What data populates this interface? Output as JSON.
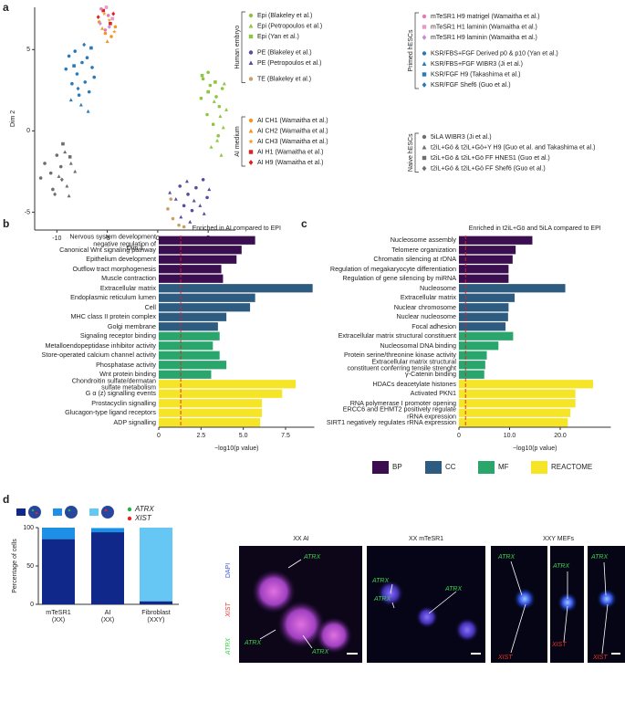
{
  "panel_labels": [
    "a",
    "b",
    "c",
    "d"
  ],
  "chart_data": [
    {
      "type": "scatter",
      "xlabel": "Dim 1",
      "ylabel": "Dim 2",
      "xlim": [
        -12.2,
        7.7
      ],
      "ylim": [
        -6.1,
        7.6
      ],
      "xticks": [
        -10,
        -5,
        0,
        5
      ],
      "yticks": [
        -5,
        0,
        5
      ],
      "groups": [
        {
          "label": "Human embryo",
          "series": [
            {
              "name": "Epi (Blakeley et al.)",
              "color": "#8dc63f",
              "marker": "circle",
              "x": [
                4.5,
                5.2,
                5.8,
                6.1,
                4.9,
                5.5,
                6.4,
                5.0,
                4.3,
                6.0
              ],
              "y": [
                3.2,
                2.8,
                2.1,
                1.5,
                1.0,
                0.4,
                2.6,
                3.6,
                2.0,
                -0.3
              ]
            },
            {
              "name": "Epi (Petropoulos et al.)",
              "color": "#8dc63f",
              "marker": "triangle",
              "x": [
                5.6,
                6.2,
                6.5,
                5.9,
                6.8,
                5.3,
                6.3,
                6.6
              ],
              "y": [
                1.8,
                0.9,
                0.2,
                -0.6,
                1.3,
                -1.0,
                -1.5,
                2.9
              ]
            },
            {
              "name": "Epi (Yan et al.)",
              "color": "#8dc63f",
              "marker": "square",
              "x": [
                4.4,
                5.0,
                5.7
              ],
              "y": [
                3.4,
                2.4,
                3.0
              ]
            },
            {
              "name": "PE (Blakeley et al.)",
              "color": "#5b4aa0",
              "marker": "circle",
              "x": [
                2.2,
                3.0,
                3.8,
                4.5,
                2.6,
                3.4,
                4.9
              ],
              "y": [
                -3.4,
                -3.9,
                -3.5,
                -3.0,
                -4.6,
                -4.9,
                -4.1
              ]
            },
            {
              "name": "PE (Petropoulos et al.)",
              "color": "#5b4aa0",
              "marker": "triangle",
              "x": [
                1.8,
                2.9,
                3.6,
                4.2,
                5.1,
                2.3,
                4.6,
                3.2,
                1.2
              ],
              "y": [
                -4.2,
                -3.1,
                -4.3,
                -4.6,
                -3.6,
                -5.3,
                -5.1,
                -5.6,
                -3.8
              ]
            },
            {
              "name": "TE (Blakeley et al.)",
              "color": "#c9a063",
              "marker": "circle",
              "x": [
                1.0,
                1.5,
                2.1,
                1.3,
                2.6
              ],
              "y": [
                -4.8,
                -5.4,
                -5.8,
                -4.2,
                -5.9
              ]
            }
          ]
        },
        {
          "label": "AI medium",
          "series": [
            {
              "name": "AI CH1 (Wamaitha et al.)",
              "color": "#f7941d",
              "marker": "circle",
              "x": [
                -5.2,
                -4.6,
                -5.8,
                -4.2
              ],
              "y": [
                6.0,
                5.8,
                6.7,
                6.4
              ]
            },
            {
              "name": "AI CH2 (Wamaitha et al.)",
              "color": "#f7941d",
              "marker": "triangle",
              "x": [
                -5.0,
                -5.5,
                -4.5
              ],
              "y": [
                5.5,
                6.3,
                6.9
              ]
            },
            {
              "name": "AI CH3 (Wamaitha et al.)",
              "color": "#f7941d",
              "marker": "star",
              "x": [
                -4.8,
                -5.3,
                -4.3
              ],
              "y": [
                6.8,
                7.2,
                6.1
              ]
            },
            {
              "name": "AI H1 (Wamaitha et al.)",
              "color": "#e02020",
              "marker": "square",
              "x": [
                -5.4,
                -4.7
              ],
              "y": [
                7.4,
                6.6
              ]
            },
            {
              "name": "AI H9 (Wamaitha et al.)",
              "color": "#e02020",
              "marker": "diamond",
              "x": [
                -5.9,
                -4.4
              ],
              "y": [
                7.0,
                7.2
              ]
            }
          ]
        },
        {
          "label": "Primed hESCs",
          "series": [
            {
              "name": "mTeSR1 H9 matrigel (Wamaitha et al.)",
              "color": "#e37bb4",
              "marker": "circle",
              "x": [
                -5.6,
                -4.9,
                -5.2
              ],
              "y": [
                7.5,
                7.1,
                6.2
              ]
            },
            {
              "name": "mTeSR1 H1 laminin (Wamaitha et al.)",
              "color": "#e89ac4",
              "marker": "square",
              "x": [
                -5.1,
                -4.5
              ],
              "y": [
                7.6,
                6.9
              ]
            },
            {
              "name": "mTeSR1 H9 laminin (Wamaitha et al.)",
              "color": "#c98ed6",
              "marker": "diamond",
              "x": [
                -5.7,
                -4.8
              ],
              "y": [
                6.6,
                6.4
              ]
            },
            {
              "name": "KSR/FBS+FGF Derived p0 & p10 (Yan et al.)",
              "color": "#2a7ab8",
              "marker": "circle",
              "x": [
                -8.8,
                -8.2,
                -7.5,
                -7.0,
                -6.5,
                -8.0,
                -7.2,
                -6.8,
                -9.1,
                -7.8,
                -6.3,
                -8.5
              ],
              "y": [
                4.6,
                4.9,
                4.2,
                4.5,
                3.9,
                3.5,
                3.0,
                2.4,
                3.8,
                2.2,
                3.3,
                2.9
              ]
            },
            {
              "name": "KSR/FBS+FGF WIBR3 (Ji et al.)",
              "color": "#2a7ab8",
              "marker": "triangle",
              "x": [
                -7.6,
                -8.6,
                -6.9
              ],
              "y": [
                1.6,
                1.9,
                1.2
              ]
            },
            {
              "name": "KSR/FGF H9 (Takashima et al.)",
              "color": "#2a7ab8",
              "marker": "square",
              "x": [
                -6.6,
                -8.3
              ],
              "y": [
                5.1,
                4.0
              ]
            },
            {
              "name": "KSR/FGF Shef6 (Guo et al.)",
              "color": "#2a7ab8",
              "marker": "diamond",
              "x": [
                -7.3,
                -7.9
              ],
              "y": [
                5.3,
                2.6
              ]
            }
          ]
        },
        {
          "label": "Naive hESCs",
          "series": [
            {
              "name": "5iLA WIBR3 (Ji et al.)",
              "color": "#6d6e70",
              "marker": "circle",
              "x": [
                -11.2,
                -10.6,
                -10.0,
                -11.6,
                -9.6,
                -10.4
              ],
              "y": [
                -2.0,
                -2.6,
                -1.5,
                -2.9,
                -2.2,
                -3.6
              ]
            },
            {
              "name": "t2iL+Gö & t2iL+Gö+Y H9 (Guo et al. and Takashima et al.)",
              "color": "#6d6e70",
              "marker": "triangle",
              "x": [
                -9.2,
                -8.6,
                -9.8,
                -8.2,
                -9.0,
                -8.8
              ],
              "y": [
                -1.3,
                -2.0,
                -2.8,
                -2.5,
                -3.4,
                -4.0
              ]
            },
            {
              "name": "t2iL+Gö & t2iL+Gö FF HNES1 (Guo et al.)",
              "color": "#6d6e70",
              "marker": "square",
              "x": [
                -9.4,
                -8.7
              ],
              "y": [
                -0.8,
                -1.6
              ]
            },
            {
              "name": "t2iL+Gö & t2iL+Gö FF Shef6 (Guo et al.)",
              "color": "#6d6e70",
              "marker": "diamond",
              "x": [
                -10.2,
                -9.5
              ],
              "y": [
                -3.9,
                -3.0
              ]
            }
          ]
        }
      ]
    },
    {
      "type": "hbar",
      "title": "Enriched in AI compared to EPI",
      "xlabel": "−log10(p value)",
      "xlim": [
        0,
        9.2
      ],
      "xticks": [
        0,
        2.5,
        {
          "value": 5,
          "label": "5.0"
        },
        7.5
      ],
      "threshold": 1.3,
      "threshold_color": "#e0202a",
      "categories": [
        "Nervous system development\nnegative regulation of",
        "Canonical Wnt signaling pathway",
        "Epithelium development",
        "Outflow tract morphogenesis",
        "Muscle contraction",
        "Extracellular matrix",
        "Endoplasmic reticulum lumen",
        "Cell",
        "MHC class II protein complex",
        "Golgi membrane",
        "Signaling receptor binding",
        "Metalloendopeptidase inhibitor activity",
        "Store-operated calcium channel activity",
        "Phosphatase activity",
        "Wnt protein binding",
        "Chondroitin sulfate/dermatan\nsulfate metabolism",
        "G α (z) signalling events",
        "Prostacyclin signalling",
        "Glucagon-type ligand receptors",
        "ADP signalling"
      ],
      "values": [
        5.7,
        4.9,
        4.6,
        3.7,
        3.8,
        9.1,
        5.7,
        5.4,
        4.0,
        3.5,
        3.6,
        3.2,
        3.6,
        4.0,
        3.1,
        8.1,
        7.3,
        6.1,
        6.1,
        6.0
      ],
      "colors": [
        "#3b0f4f",
        "#3b0f4f",
        "#3b0f4f",
        "#3b0f4f",
        "#3b0f4f",
        "#2e5b80",
        "#2e5b80",
        "#2e5b80",
        "#2e5b80",
        "#2e5b80",
        "#2aa66c",
        "#2aa66c",
        "#2aa66c",
        "#2aa66c",
        "#2aa66c",
        "#f6e526",
        "#f6e526",
        "#f6e526",
        "#f6e526",
        "#f6e526"
      ]
    },
    {
      "type": "hbar",
      "title": "Enriched in t2iL+Gö and 5iLA compared to EPI",
      "xlabel": "−log10(p value)",
      "xlim": [
        0,
        30
      ],
      "xticks": [
        0,
        {
          "value": 10,
          "label": "10.0"
        },
        {
          "value": 20,
          "label": "20.0"
        }
      ],
      "threshold": 1.3,
      "threshold_color": "#e0202a",
      "categories": [
        "Nucleosome assembly",
        "Telomere organization",
        "Chromatin silencing at rDNA",
        "Regulation of megakaryocyte differentiation",
        "Regulation of gene silencing by miRNA",
        "Nucleosome",
        "Extracellular matrix",
        "Nuclear chromosome",
        "Nuclear nucleosome",
        "Focal adhesion",
        "Extracellular matrix structural constituent",
        "Nucleosomal DNA binding",
        "Protein serine/threonine kinase activity",
        "Extracellular matrix structural\nconstituent conferring tensile strenght",
        "γ-Catenin binding",
        "HDACs deacetylate histones",
        "Activated PKN1",
        "RNA polymerase I promoter opening",
        "ERCC6 and EHMT2 positively regulate\nrRNA expression",
        "SIRT1 negatively regulates rRNA expression"
      ],
      "values": [
        14.5,
        11.2,
        10.6,
        9.8,
        9.8,
        21,
        11,
        9.8,
        9.7,
        9.2,
        10.7,
        7.8,
        5.5,
        5.2,
        5.0,
        26.5,
        23,
        23,
        22,
        21.5
      ],
      "colors": [
        "#3b0f4f",
        "#3b0f4f",
        "#3b0f4f",
        "#3b0f4f",
        "#3b0f4f",
        "#2e5b80",
        "#2e5b80",
        "#2e5b80",
        "#2e5b80",
        "#2e5b80",
        "#2aa66c",
        "#2aa66c",
        "#2aa66c",
        "#2aa66c",
        "#2aa66c",
        "#f6e526",
        "#f6e526",
        "#f6e526",
        "#f6e526",
        "#f6e526"
      ],
      "legend": [
        {
          "name": "BP",
          "color": "#3b0f4f"
        },
        {
          "name": "CC",
          "color": "#2e5b80"
        },
        {
          "name": "MF",
          "color": "#2aa66c"
        },
        {
          "name": "REACTOME",
          "color": "#f6e526"
        }
      ]
    },
    {
      "type": "stacked_bar",
      "ylabel": "Percentage of cells",
      "ylim": [
        0,
        100
      ],
      "yticks": [
        0,
        50,
        100
      ],
      "categories": [
        "mTeSR1\n(XX)",
        "AI\n(XX)",
        "Fibroblast\n(XXY)"
      ],
      "series": [
        {
          "color": "#10288a",
          "values": [
            85,
            94,
            4
          ]
        },
        {
          "color": "#1e8fe6",
          "values": [
            15,
            5,
            0
          ]
        },
        {
          "color": "#66c7f4",
          "values": [
            0,
            1,
            96
          ]
        }
      ],
      "markers": [
        {
          "name": "ATRX",
          "color": "#1db34a"
        },
        {
          "name": "XIST",
          "color": "#e3262b"
        }
      ]
    }
  ],
  "micrographs": {
    "titles": [
      "XX AI",
      "XX mTeSR1",
      "XXY MEFs"
    ],
    "channels": [
      "DAPI",
      "XIST",
      "ATRX"
    ],
    "annotations": [
      "ATRX",
      "ATRX",
      "ATRX",
      "ATRX",
      "ATRX",
      "ATRX",
      "ATRX",
      "XIST",
      "ATRX",
      "XIST",
      "ATRX",
      "XIST"
    ]
  }
}
